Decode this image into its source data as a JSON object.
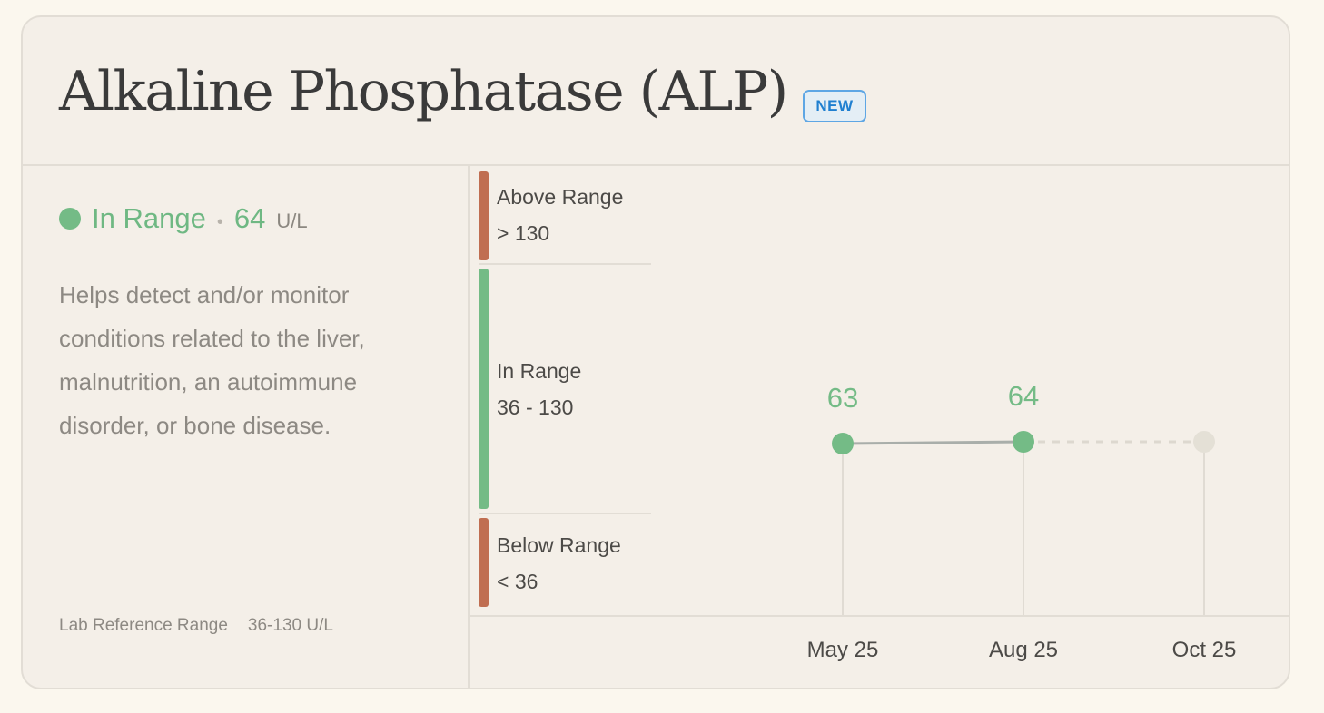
{
  "card": {
    "title": "Alkaline Phosphatase (ALP)",
    "badge": "NEW"
  },
  "summary": {
    "status": "In Range",
    "separator": "•",
    "value": "64",
    "unit": "U/L",
    "description": "Helps detect and/or monitor conditions related to the liver, malnutrition, an autoimmune disorder, or bone disease.",
    "reference_label": "Lab Reference Range",
    "reference_value": "36-130 U/L"
  },
  "colors": {
    "in_range": "#74bb86",
    "out_of_range": "#c06e51",
    "connector": "#a9aeaa",
    "future": "#e4e0d6"
  },
  "bands": [
    {
      "label": "Above Range",
      "range": "> 130",
      "status": "out"
    },
    {
      "label": "In Range",
      "range": "36 - 130",
      "status": "in"
    },
    {
      "label": "Below Range",
      "range": "< 36",
      "status": "out"
    }
  ],
  "chart_data": {
    "type": "line",
    "x": [
      "May 25",
      "Aug 25",
      "Oct 25"
    ],
    "series": [
      {
        "values": [
          63,
          64,
          null
        ]
      }
    ],
    "data_labels": [
      "63",
      "64",
      ""
    ],
    "future_point": "Oct 25",
    "reference_range": [
      36,
      130
    ],
    "grid": false
  }
}
